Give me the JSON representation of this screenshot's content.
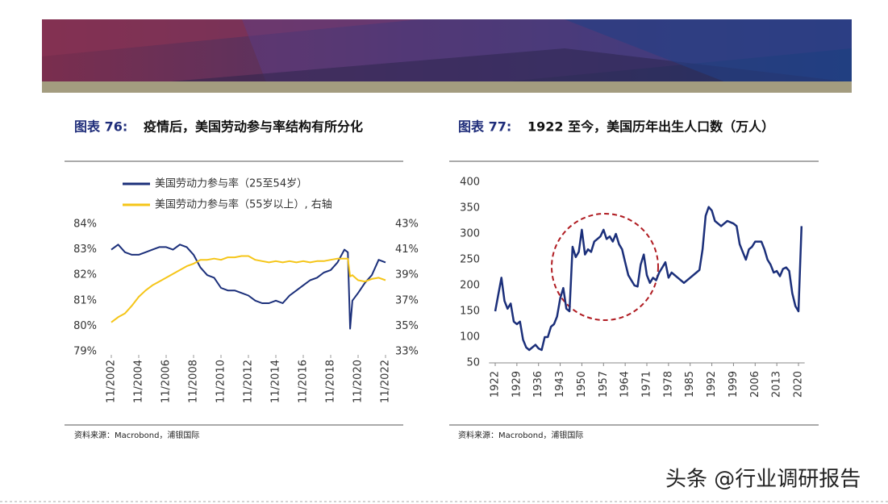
{
  "figures": [
    {
      "label": "图表 76:",
      "title": "疫情后，美国劳动参与率结构有所分化",
      "source": "资料来源：Macrobond，浦银国际",
      "chart": {
        "type": "line",
        "x": [
          "11/2002",
          "05/2003",
          "11/2003",
          "05/2004",
          "11/2004",
          "05/2005",
          "11/2005",
          "05/2006",
          "11/2006",
          "05/2007",
          "11/2007",
          "05/2008",
          "11/2008",
          "05/2009",
          "11/2009",
          "05/2010",
          "11/2010",
          "05/2011",
          "11/2011",
          "05/2012",
          "11/2012",
          "05/2013",
          "11/2013",
          "05/2014",
          "11/2014",
          "05/2015",
          "11/2015",
          "05/2016",
          "11/2016",
          "05/2017",
          "11/2017",
          "05/2018",
          "11/2018",
          "05/2019",
          "11/2019",
          "02/2020",
          "04/2020",
          "06/2020",
          "11/2020",
          "05/2021",
          "11/2021",
          "05/2022",
          "11/2022"
        ],
        "xticks": [
          "11/2002",
          "11/2004",
          "11/2006",
          "11/2008",
          "11/2010",
          "11/2012",
          "11/2014",
          "11/2016",
          "11/2018",
          "11/2020",
          "11/2022"
        ],
        "ylim": [
          79,
          84
        ],
        "yticks": [
          {
            "value": 79,
            "label": "79%"
          },
          {
            "value": 80,
            "label": "80%"
          },
          {
            "value": 81,
            "label": "81%"
          },
          {
            "value": 82,
            "label": "82%"
          },
          {
            "value": 83,
            "label": "83%"
          },
          {
            "value": 84,
            "label": "84%"
          }
        ],
        "y2lim": [
          33,
          43
        ],
        "y2ticks": [
          {
            "value": 33,
            "label": "33%"
          },
          {
            "value": 35,
            "label": "35%"
          },
          {
            "value": 37,
            "label": "37%"
          },
          {
            "value": 39,
            "label": "39%"
          },
          {
            "value": 41,
            "label": "41%"
          },
          {
            "value": 43,
            "label": "43%"
          }
        ],
        "series": [
          {
            "name": "美国劳动力参与率（25至54岁）",
            "color": "#1b2f7a",
            "values": [
              83.0,
              83.2,
              82.9,
              82.8,
              82.8,
              82.9,
              83.0,
              83.1,
              83.1,
              83.0,
              83.2,
              83.1,
              82.8,
              82.3,
              82.0,
              81.9,
              81.5,
              81.4,
              81.4,
              81.3,
              81.2,
              81.0,
              80.9,
              80.9,
              81.0,
              80.9,
              81.2,
              81.4,
              81.6,
              81.8,
              81.9,
              82.1,
              82.2,
              82.5,
              83.0,
              82.9,
              79.9,
              81.0,
              81.3,
              81.7,
              82.0,
              82.6,
              82.5
            ]
          },
          {
            "name": "美国劳动力参与率（55岁以上）, 右轴",
            "color": "#f5c518",
            "axis": "y2",
            "values": [
              35.3,
              35.7,
              36.0,
              36.6,
              37.3,
              37.8,
              38.2,
              38.5,
              38.8,
              39.1,
              39.4,
              39.7,
              39.9,
              40.2,
              40.2,
              40.3,
              40.2,
              40.4,
              40.4,
              40.5,
              40.5,
              40.2,
              40.1,
              40.0,
              40.1,
              40.0,
              40.1,
              40.0,
              40.1,
              40.0,
              40.1,
              40.1,
              40.2,
              40.3,
              40.3,
              40.3,
              38.9,
              39.0,
              38.6,
              38.5,
              38.7,
              38.8,
              38.6
            ]
          }
        ]
      }
    },
    {
      "label": "图表 77:",
      "title": "1922 至今，美国历年出生人口数（万人）",
      "source": "资料来源：Macrobond，浦银国际",
      "chart": {
        "type": "line",
        "color": "#1b2f7a",
        "x": [
          1922,
          1924,
          1925,
          1926,
          1927,
          1928,
          1929,
          1930,
          1931,
          1932,
          1933,
          1935,
          1936,
          1937,
          1938,
          1939,
          1940,
          1941,
          1942,
          1943,
          1944,
          1945,
          1946,
          1947,
          1948,
          1949,
          1950,
          1951,
          1952,
          1953,
          1954,
          1955,
          1956,
          1957,
          1958,
          1959,
          1960,
          1961,
          1962,
          1963,
          1964,
          1965,
          1966,
          1967,
          1968,
          1969,
          1970,
          1971,
          1972,
          1973,
          1974,
          1975,
          1976,
          1977,
          1978,
          1979,
          1981,
          1983,
          1985,
          1987,
          1988,
          1989,
          1990,
          1991,
          1992,
          1993,
          1995,
          1996,
          1997,
          1999,
          2000,
          2001,
          2002,
          2003,
          2004,
          2005,
          2006,
          2008,
          2009,
          2010,
          2011,
          2012,
          2013,
          2014,
          2015,
          2016,
          2017,
          2018,
          2019,
          2020,
          2021
        ],
        "values": [
          150,
          215,
          170,
          155,
          165,
          130,
          125,
          130,
          95,
          80,
          75,
          85,
          78,
          75,
          100,
          100,
          120,
          125,
          140,
          175,
          195,
          155,
          150,
          275,
          255,
          265,
          308,
          260,
          270,
          265,
          285,
          290,
          295,
          308,
          290,
          295,
          285,
          300,
          280,
          270,
          245,
          220,
          210,
          200,
          198,
          240,
          260,
          220,
          205,
          215,
          210,
          225,
          235,
          245,
          215,
          225,
          215,
          205,
          215,
          225,
          230,
          270,
          335,
          352,
          345,
          325,
          315,
          320,
          325,
          320,
          315,
          280,
          265,
          250,
          270,
          275,
          285,
          285,
          270,
          250,
          240,
          225,
          228,
          218,
          232,
          235,
          228,
          185,
          160,
          150,
          315
        ],
        "xlim": [
          1920,
          2022
        ],
        "xticks": [
          1922,
          1929,
          1936,
          1943,
          1950,
          1957,
          1964,
          1971,
          1978,
          1985,
          1992,
          1999,
          2006,
          2013,
          2020
        ],
        "ylim": [
          50,
          400
        ],
        "yticks": [
          50,
          100,
          150,
          200,
          250,
          300,
          350,
          400
        ]
      }
    }
  ],
  "watermark": "头条 @行业调研报告"
}
